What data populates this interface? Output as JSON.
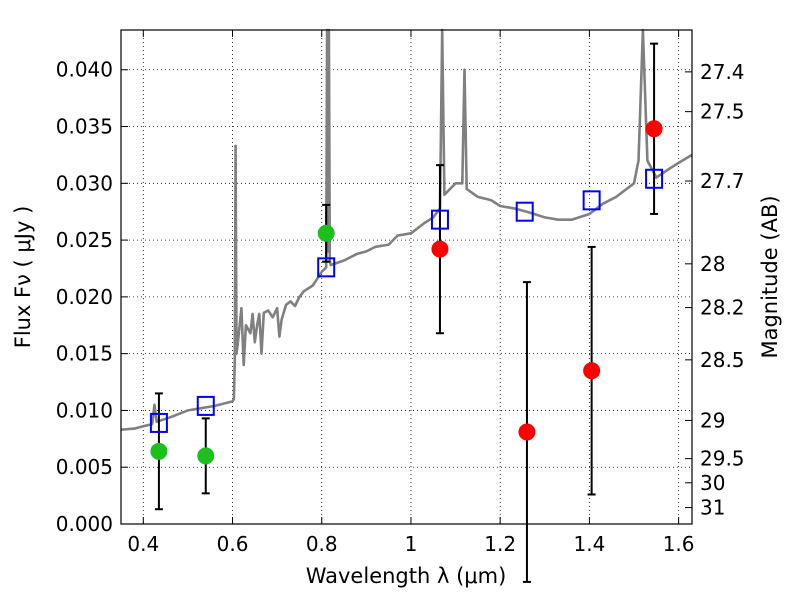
{
  "chart_data": {
    "type": "scatter",
    "xlabel": "Wavelength  λ (μm)",
    "ylabel": "Flux  Fν  ( μJy )",
    "y2label": "Magnitude (AB)",
    "xlim": [
      0.35,
      1.63
    ],
    "ylim": [
      0.0,
      0.0435
    ],
    "grid": true,
    "x_ticks": [
      {
        "value": 0.4,
        "label": "0.4"
      },
      {
        "value": 0.6,
        "label": "0.6"
      },
      {
        "value": 0.8,
        "label": "0.8"
      },
      {
        "value": 1.0,
        "label": "1"
      },
      {
        "value": 1.2,
        "label": "1.2"
      },
      {
        "value": 1.4,
        "label": "1.4"
      },
      {
        "value": 1.6,
        "label": "1.6"
      }
    ],
    "y_ticks": [
      {
        "value": 0.0,
        "label": "0.000"
      },
      {
        "value": 0.005,
        "label": "0.005"
      },
      {
        "value": 0.01,
        "label": "0.010"
      },
      {
        "value": 0.015,
        "label": "0.015"
      },
      {
        "value": 0.02,
        "label": "0.020"
      },
      {
        "value": 0.025,
        "label": "0.025"
      },
      {
        "value": 0.03,
        "label": "0.030"
      },
      {
        "value": 0.035,
        "label": "0.035"
      },
      {
        "value": 0.04,
        "label": "0.040"
      }
    ],
    "y2_ticks": [
      {
        "value": 27.4,
        "label": "27.4"
      },
      {
        "value": 27.5,
        "label": "27.5"
      },
      {
        "value": 27.7,
        "label": "27.7"
      },
      {
        "value": 28,
        "label": "28"
      },
      {
        "value": 28.2,
        "label": "28.2"
      },
      {
        "value": 28.5,
        "label": "28.5"
      },
      {
        "value": 29,
        "label": "29"
      },
      {
        "value": 29.5,
        "label": "29.5"
      },
      {
        "value": 30,
        "label": "30"
      },
      {
        "value": 31,
        "label": "31"
      }
    ],
    "model_spectrum": {
      "color": "#808080",
      "points": [
        [
          0.35,
          0.0083
        ],
        [
          0.38,
          0.0084
        ],
        [
          0.4,
          0.0086
        ],
        [
          0.42,
          0.0088
        ],
        [
          0.425,
          0.0105
        ],
        [
          0.43,
          0.009
        ],
        [
          0.46,
          0.0094
        ],
        [
          0.5,
          0.01
        ],
        [
          0.53,
          0.0102
        ],
        [
          0.56,
          0.0104
        ],
        [
          0.58,
          0.0106
        ],
        [
          0.6,
          0.0108
        ],
        [
          0.603,
          0.011
        ],
        [
          0.605,
          0.0145
        ],
        [
          0.607,
          0.0333
        ],
        [
          0.609,
          0.015
        ],
        [
          0.612,
          0.016
        ],
        [
          0.62,
          0.019
        ],
        [
          0.625,
          0.014
        ],
        [
          0.63,
          0.0175
        ],
        [
          0.64,
          0.0168
        ],
        [
          0.645,
          0.0185
        ],
        [
          0.65,
          0.016
        ],
        [
          0.655,
          0.0175
        ],
        [
          0.66,
          0.0185
        ],
        [
          0.665,
          0.015
        ],
        [
          0.67,
          0.0186
        ],
        [
          0.68,
          0.0188
        ],
        [
          0.69,
          0.0182
        ],
        [
          0.7,
          0.019
        ],
        [
          0.705,
          0.0165
        ],
        [
          0.71,
          0.018
        ],
        [
          0.72,
          0.0193
        ],
        [
          0.73,
          0.0196
        ],
        [
          0.74,
          0.0192
        ],
        [
          0.75,
          0.02
        ],
        [
          0.76,
          0.0205
        ],
        [
          0.78,
          0.021
        ],
        [
          0.8,
          0.0222
        ],
        [
          0.81,
          0.0226
        ],
        [
          0.812,
          0.0435
        ],
        [
          0.814,
          0.024
        ],
        [
          0.816,
          0.0435
        ],
        [
          0.818,
          0.0232
        ],
        [
          0.82,
          0.0228
        ],
        [
          0.85,
          0.0232
        ],
        [
          0.88,
          0.0238
        ],
        [
          0.9,
          0.024
        ],
        [
          0.92,
          0.0244
        ],
        [
          0.95,
          0.0246
        ],
        [
          0.97,
          0.0254
        ],
        [
          1.0,
          0.0256
        ],
        [
          1.03,
          0.0265
        ],
        [
          1.05,
          0.027
        ],
        [
          1.065,
          0.0278
        ],
        [
          1.07,
          0.0435
        ],
        [
          1.075,
          0.029
        ],
        [
          1.1,
          0.03
        ],
        [
          1.115,
          0.03
        ],
        [
          1.12,
          0.04
        ],
        [
          1.125,
          0.0295
        ],
        [
          1.15,
          0.0288
        ],
        [
          1.18,
          0.0285
        ],
        [
          1.2,
          0.028
        ],
        [
          1.23,
          0.0278
        ],
        [
          1.26,
          0.0275
        ],
        [
          1.3,
          0.027
        ],
        [
          1.33,
          0.0268
        ],
        [
          1.36,
          0.0268
        ],
        [
          1.4,
          0.0273
        ],
        [
          1.43,
          0.0282
        ],
        [
          1.46,
          0.0288
        ],
        [
          1.5,
          0.03
        ],
        [
          1.51,
          0.032
        ],
        [
          1.52,
          0.0435
        ],
        [
          1.53,
          0.032
        ],
        [
          1.55,
          0.0305
        ],
        [
          1.58,
          0.0313
        ],
        [
          1.6,
          0.0318
        ],
        [
          1.63,
          0.0325
        ]
      ]
    },
    "model_photometry": {
      "marker": "square",
      "color": "#0000ff",
      "points": [
        [
          0.435,
          0.0089
        ],
        [
          0.54,
          0.0104
        ],
        [
          0.81,
          0.0226
        ],
        [
          1.065,
          0.0268
        ],
        [
          1.255,
          0.0275
        ],
        [
          1.405,
          0.0285
        ],
        [
          1.545,
          0.0304
        ]
      ]
    },
    "observed_green": {
      "marker": "circle",
      "color": "#1cbf1c",
      "points": [
        {
          "x": 0.435,
          "y": 0.0064,
          "err": 0.0051
        },
        {
          "x": 0.54,
          "y": 0.006,
          "err": 0.0033
        },
        {
          "x": 0.81,
          "y": 0.0256,
          "err": 0.0025
        }
      ]
    },
    "observed_red": {
      "marker": "circle",
      "color": "#ff0000",
      "points": [
        {
          "x": 1.065,
          "y": 0.0242,
          "err": 0.0074
        },
        {
          "x": 1.26,
          "y": 0.0081,
          "err": 0.0132
        },
        {
          "x": 1.405,
          "y": 0.0135,
          "err": 0.0109
        },
        {
          "x": 1.545,
          "y": 0.0348,
          "err": 0.0075
        }
      ]
    }
  }
}
